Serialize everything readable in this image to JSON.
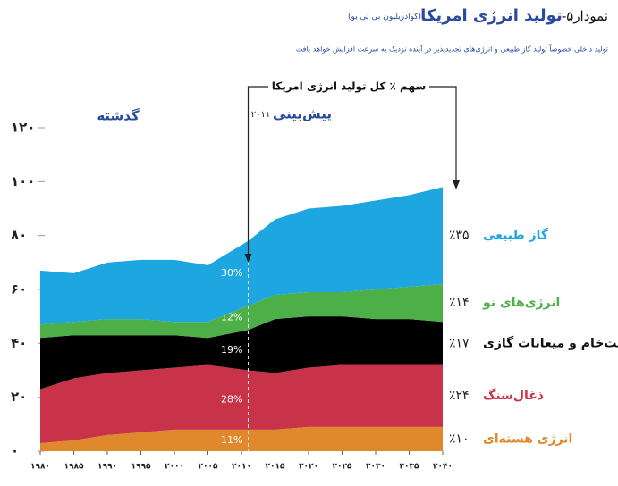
{
  "chart_data": {
    "type": "stacked_area",
    "title_prefix": "نمودار۵-",
    "title": "تولید انرژی امریکا",
    "unit": "(کوادریلیون بی تی یو)",
    "subtitle": "تولید داخلی خصوصاً تولید گاز طبیعی و انرژی‌های تجدیدپذیر در آینده نزدیک به سرعت افزایش خواهد یافت",
    "past_label": "گذشته",
    "forecast_label": "پیش‌بینی",
    "share_title": "سهم ٪ کل تولید انرژی امریکا",
    "divider": {
      "x": 2011,
      "label": "۲۰۱۱"
    },
    "x": [
      1980,
      1985,
      1990,
      1995,
      2000,
      2005,
      2011,
      2015,
      2020,
      2025,
      2030,
      2035,
      2040
    ],
    "series": [
      {
        "name": "انرژی هسته‌ای",
        "color": "#e0892c",
        "share_2011": "11%",
        "share_2040": "٪۱۰",
        "values": [
          3,
          4,
          6,
          7,
          8,
          8,
          8,
          8,
          9,
          9,
          9,
          9,
          9
        ]
      },
      {
        "name": "ذغال‌سنگ",
        "color": "#c8334a",
        "share_2011": "28%",
        "share_2040": "٪۲۴",
        "values": [
          20,
          23,
          23,
          23,
          23,
          24,
          22,
          21,
          22,
          23,
          23,
          23,
          23
        ]
      },
      {
        "name": "نفت‌خام و میعانات گازی",
        "color": "#000000",
        "share_2011": "19%",
        "share_2040": "٪۱۷",
        "values": [
          19,
          16,
          14,
          13,
          12,
          10,
          15,
          20,
          19,
          18,
          17,
          17,
          16
        ]
      },
      {
        "name": "انرژی‌های نو",
        "color": "#4caf47",
        "share_2011": "12%",
        "share_2040": "٪۱۴",
        "values": [
          5,
          5,
          6,
          6,
          5,
          6,
          9,
          9,
          9,
          9,
          11,
          12,
          14
        ]
      },
      {
        "name": "گاز طبیعی",
        "color": "#1ea6e0",
        "share_2011": "30%",
        "share_2040": "٪۳۵",
        "values": [
          20,
          18,
          21,
          22,
          23,
          21,
          24,
          28,
          31,
          32,
          33,
          34,
          36
        ]
      }
    ],
    "xlim": [
      1980,
      2040
    ],
    "xticks": [
      {
        "value": 1980,
        "label": "۱۹۸۰"
      },
      {
        "value": 1985,
        "label": "۱۹۸۵"
      },
      {
        "value": 1990,
        "label": "۱۹۹۰"
      },
      {
        "value": 1995,
        "label": "۱۹۹۵"
      },
      {
        "value": 2000,
        "label": "۲۰۰۰"
      },
      {
        "value": 2005,
        "label": "۲۰۰۵"
      },
      {
        "value": 2010,
        "label": "۲۰۱۰"
      },
      {
        "value": 2015,
        "label": "۲۰۱۵"
      },
      {
        "value": 2020,
        "label": "۲۰۲۰"
      },
      {
        "value": 2025,
        "label": "۲۰۲۵"
      },
      {
        "value": 2030,
        "label": "۲۰۳۰"
      },
      {
        "value": 2035,
        "label": "۲۰۳۵"
      },
      {
        "value": 2040,
        "label": "۲۰۴۰"
      }
    ],
    "ylim": [
      0,
      120
    ],
    "yticks": [
      {
        "value": 0,
        "label": "۰"
      },
      {
        "value": 20,
        "label": "۲۰"
      },
      {
        "value": 40,
        "label": "۴۰"
      },
      {
        "value": 60,
        "label": "۶۰"
      },
      {
        "value": 80,
        "label": "۸۰"
      },
      {
        "value": 100,
        "label": "۱۰۰"
      },
      {
        "value": 120,
        "label": "۱۲۰"
      }
    ]
  }
}
